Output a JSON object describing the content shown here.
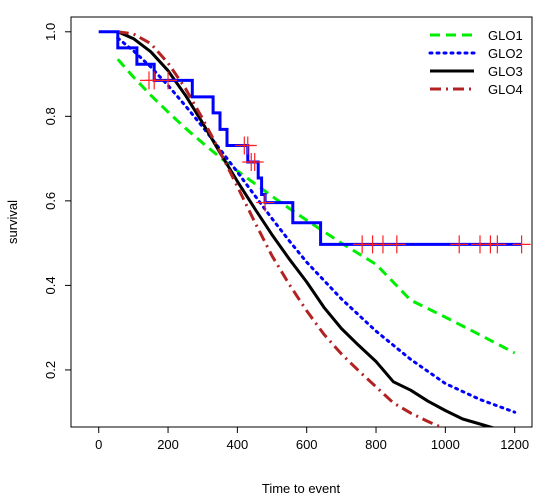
{
  "chart_data": {
    "type": "line",
    "title": "",
    "xlabel": "Time to event",
    "ylabel": "survival",
    "xlim": [
      -80,
      1250
    ],
    "ylim": [
      0.065,
      1.035
    ],
    "x_ticks": [
      0,
      200,
      400,
      600,
      800,
      1000,
      1200
    ],
    "y_ticks": [
      0.2,
      0.4,
      0.6,
      0.8,
      1.0
    ],
    "x_tick_labels": [
      "0",
      "200",
      "400",
      "600",
      "800",
      "1000",
      "1200"
    ],
    "y_tick_labels": [
      "0.2",
      "0.4",
      "0.6",
      "0.8",
      "1.0"
    ],
    "grid": false,
    "legend_position": "top-right",
    "series": [
      {
        "name": "GLO1",
        "color": "#00ee00",
        "style": "dashed",
        "x": [
          55,
          100,
          150,
          200,
          250,
          300,
          350,
          400,
          450,
          500,
          550,
          600,
          700,
          800,
          900,
          1000,
          1100,
          1200
        ],
        "y": [
          0.935,
          0.893,
          0.85,
          0.81,
          0.772,
          0.737,
          0.703,
          0.671,
          0.641,
          0.611,
          0.582,
          0.554,
          0.5,
          0.45,
          0.365,
          0.325,
          0.283,
          0.24
        ]
      },
      {
        "name": "GLO2",
        "color": "#0000ff",
        "style": "dotted",
        "x": [
          55,
          100,
          150,
          200,
          250,
          300,
          350,
          400,
          450,
          500,
          550,
          600,
          700,
          800,
          900,
          1000,
          1100,
          1200
        ],
        "y": [
          0.985,
          0.955,
          0.917,
          0.873,
          0.825,
          0.775,
          0.722,
          0.668,
          0.613,
          0.558,
          0.505,
          0.455,
          0.368,
          0.292,
          0.225,
          0.168,
          0.13,
          0.1
        ]
      },
      {
        "name": "GLO3",
        "color": "#000000",
        "style": "solid",
        "x": [
          55,
          100,
          150,
          200,
          250,
          300,
          350,
          400,
          450,
          500,
          550,
          600,
          650,
          700,
          750,
          800,
          850,
          900,
          950,
          1000,
          1050,
          1100,
          1150
        ],
        "y": [
          1.0,
          0.984,
          0.953,
          0.908,
          0.85,
          0.784,
          0.714,
          0.646,
          0.582,
          0.52,
          0.462,
          0.408,
          0.348,
          0.298,
          0.258,
          0.22,
          0.172,
          0.152,
          0.126,
          0.104,
          0.084,
          0.072,
          0.06
        ]
      },
      {
        "name": "GLO4",
        "color": "#b22222",
        "style": "dashdot",
        "x": [
          55,
          100,
          150,
          200,
          250,
          300,
          350,
          400,
          450,
          500,
          550,
          600,
          650,
          700,
          750,
          800,
          850,
          900,
          950,
          1000
        ],
        "y": [
          1.0,
          0.995,
          0.972,
          0.926,
          0.866,
          0.794,
          0.716,
          0.634,
          0.55,
          0.47,
          0.402,
          0.34,
          0.284,
          0.238,
          0.198,
          0.16,
          0.122,
          0.098,
          0.078,
          0.06
        ]
      }
    ],
    "kaplan_meier": {
      "color": "#0000ff",
      "steps": [
        [
          0,
          1.0
        ],
        [
          55,
          0.962
        ],
        [
          110,
          0.923
        ],
        [
          160,
          0.885
        ],
        [
          270,
          0.846
        ],
        [
          330,
          0.808
        ],
        [
          350,
          0.769
        ],
        [
          370,
          0.731
        ],
        [
          430,
          0.692
        ],
        [
          460,
          0.654
        ],
        [
          470,
          0.615
        ],
        [
          480,
          0.596
        ],
        [
          560,
          0.548
        ],
        [
          640,
          0.497
        ],
        [
          1220,
          0.497
        ]
      ],
      "censor_color": "#ff2020",
      "censored": [
        [
          145,
          0.885
        ],
        [
          160,
          0.885
        ],
        [
          200,
          0.885
        ],
        [
          420,
          0.731
        ],
        [
          430,
          0.731
        ],
        [
          440,
          0.692
        ],
        [
          450,
          0.692
        ],
        [
          480,
          0.596
        ],
        [
          760,
          0.497
        ],
        [
          790,
          0.497
        ],
        [
          820,
          0.497
        ],
        [
          860,
          0.497
        ],
        [
          1040,
          0.497
        ],
        [
          1100,
          0.497
        ],
        [
          1130,
          0.497
        ],
        [
          1150,
          0.497
        ],
        [
          1220,
          0.497
        ]
      ]
    }
  }
}
